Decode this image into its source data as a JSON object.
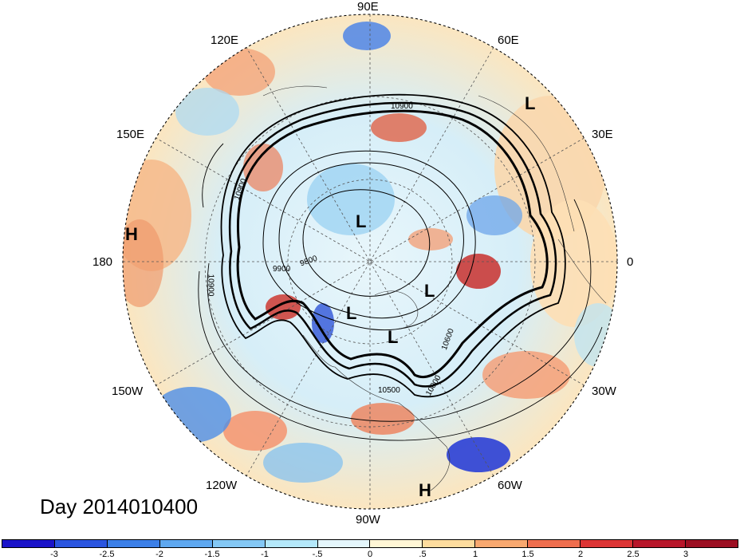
{
  "title": "Day 2014010400",
  "longitude_labels": [
    {
      "id": "90E",
      "text": "90E"
    },
    {
      "id": "60E",
      "text": "60E"
    },
    {
      "id": "30E",
      "text": "30E"
    },
    {
      "id": "0",
      "text": "0"
    },
    {
      "id": "30W",
      "text": "30W"
    },
    {
      "id": "60W",
      "text": "60W"
    },
    {
      "id": "90W",
      "text": "90W"
    },
    {
      "id": "120W",
      "text": "120W"
    },
    {
      "id": "150W",
      "text": "150W"
    },
    {
      "id": "180",
      "text": "180"
    },
    {
      "id": "150E",
      "text": "150E"
    },
    {
      "id": "120E",
      "text": "120E"
    }
  ],
  "pressure_centers": [
    {
      "type": "L",
      "label": "L"
    },
    {
      "type": "L",
      "label": "L"
    },
    {
      "type": "L",
      "label": "L"
    },
    {
      "type": "L",
      "label": "L"
    },
    {
      "type": "L",
      "label": "L"
    },
    {
      "type": "H",
      "label": "H"
    },
    {
      "type": "H",
      "label": "H"
    }
  ],
  "contour_labels": [
    "10900",
    "10900",
    "9900",
    "9800",
    "10900",
    "10600",
    "10000",
    "10500",
    "10900"
  ],
  "colorbar": {
    "ticks": [
      "-3",
      "-2.5",
      "-2",
      "-1.5",
      "-1",
      "-.5",
      "0",
      ".5",
      "1",
      "1.5",
      "2",
      "2.5",
      "3"
    ],
    "colors": [
      "#1a13c9",
      "#2a55e0",
      "#3b7fe8",
      "#5ea8f0",
      "#84c8f5",
      "#b4e8fa",
      "#e4f6fb",
      "#fff6d5",
      "#fddc9e",
      "#f8a86f",
      "#ef6e4e",
      "#dc3535",
      "#b8162a",
      "#9c0f22"
    ]
  }
}
